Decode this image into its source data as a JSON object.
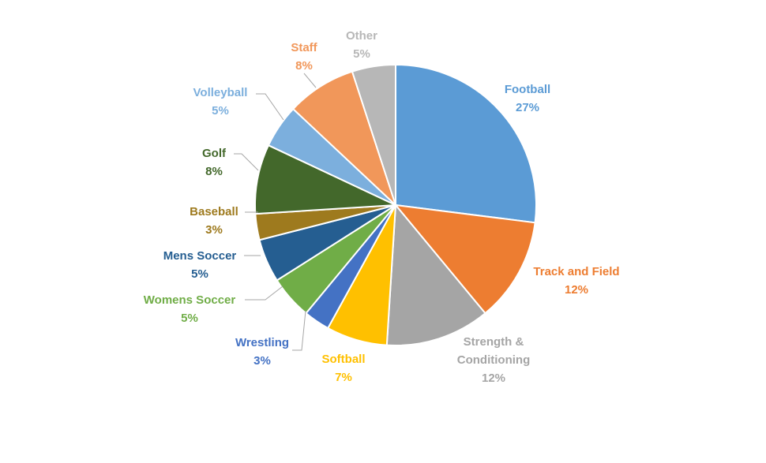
{
  "chart_data": {
    "type": "pie",
    "title": "",
    "start_angle_deg": 0,
    "direction": "clockwise",
    "slices": [
      {
        "label_lines": [
          "Football"
        ],
        "value": 27,
        "value_label": "27%",
        "color": "#5B9BD5",
        "label_color": "#5B9BD5"
      },
      {
        "label_lines": [
          "Track and Field"
        ],
        "value": 12,
        "value_label": "12%",
        "color": "#ED7D31",
        "label_color": "#ED7D31"
      },
      {
        "label_lines": [
          "Strength &",
          "Conditioning"
        ],
        "value": 12,
        "value_label": "12%",
        "color": "#A5A5A5",
        "label_color": "#A5A5A5"
      },
      {
        "label_lines": [
          "Softball"
        ],
        "value": 7,
        "value_label": "7%",
        "color": "#FFC000",
        "label_color": "#FFC000"
      },
      {
        "label_lines": [
          "Wrestling"
        ],
        "value": 3,
        "value_label": "3%",
        "color": "#4472C4",
        "label_color": "#4472C4"
      },
      {
        "label_lines": [
          "Womens Soccer"
        ],
        "value": 5,
        "value_label": "5%",
        "color": "#70AD47",
        "label_color": "#70AD47"
      },
      {
        "label_lines": [
          "Mens Soccer"
        ],
        "value": 5,
        "value_label": "5%",
        "color": "#255E91",
        "label_color": "#255E91"
      },
      {
        "label_lines": [
          "Baseball"
        ],
        "value": 3,
        "value_label": "3%",
        "color": "#9E7A1E",
        "label_color": "#9E7A1E"
      },
      {
        "label_lines": [
          "Golf"
        ],
        "value": 8,
        "value_label": "8%",
        "color": "#43682B",
        "label_color": "#43682B"
      },
      {
        "label_lines": [
          "Volleyball"
        ],
        "value": 5,
        "value_label": "5%",
        "color": "#7CAFDD",
        "label_color": "#7CAFDD"
      },
      {
        "label_lines": [
          "Staff"
        ],
        "value": 8,
        "value_label": "8%",
        "color": "#F1975A",
        "label_color": "#F1975A"
      },
      {
        "label_lines": [
          "Other"
        ],
        "value": 5,
        "value_label": "5%",
        "color": "#B7B7B7",
        "label_color": "#B7B7B7"
      }
    ]
  }
}
